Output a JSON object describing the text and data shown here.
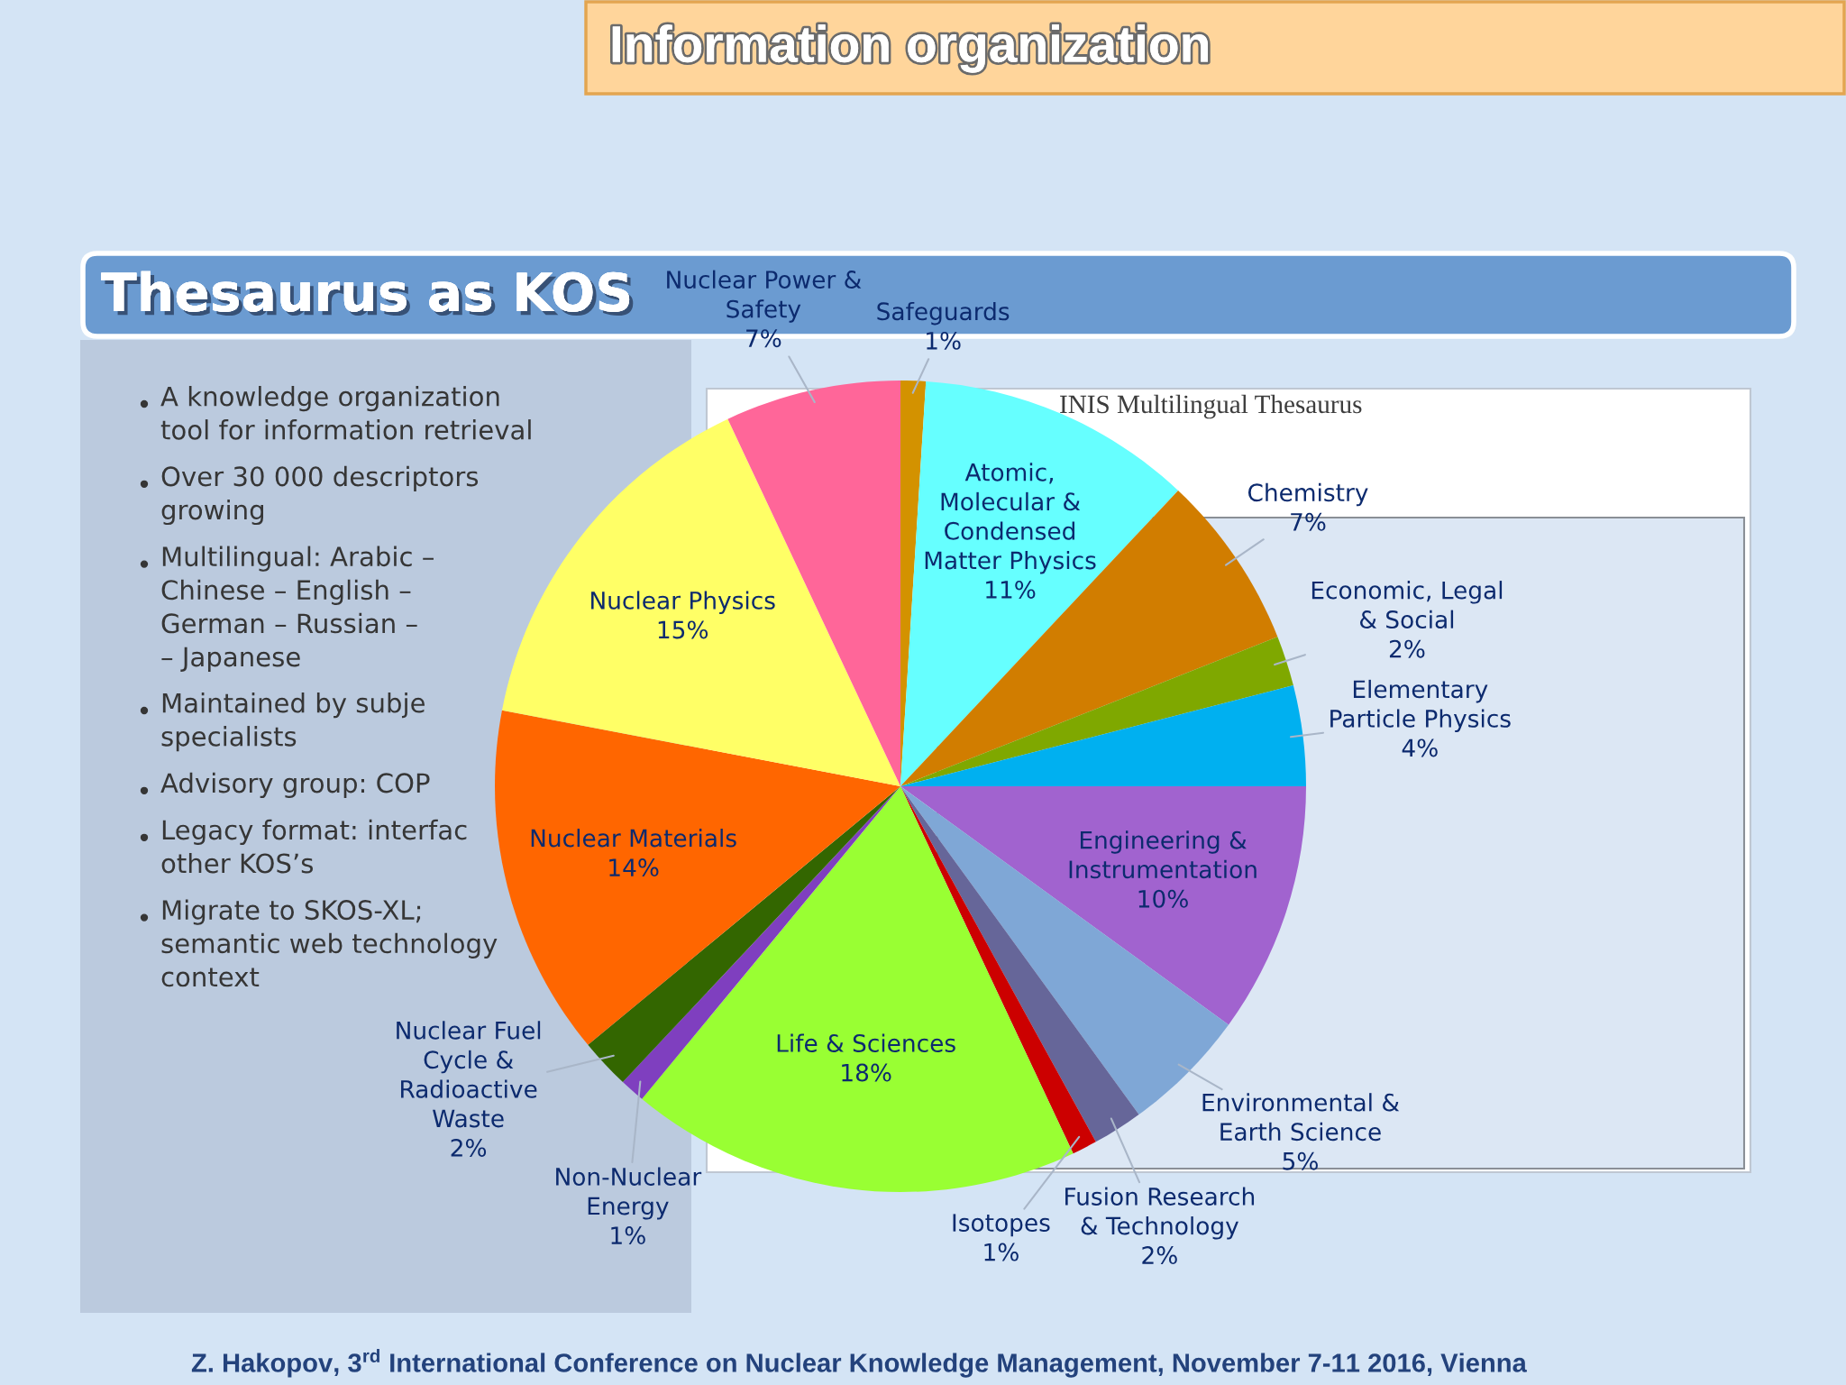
{
  "chart_data": {
    "type": "pie",
    "title": "Information organization",
    "subtitle": "Thesaurus as KOS",
    "categories": [
      "Safeguards",
      "Atomic,\nMolecular &\nCondensed\nMatter Physics",
      "Chemistry",
      "Economic, Legal\n& Social",
      "Elementary\nParticle Physics",
      "Engineering &\nInstrumentation",
      "Environmental &\nEarth Science",
      "Fusion Research\n& Technology",
      "Isotopes",
      "Life & Sciences",
      "Non-Nuclear\nEnergy",
      "Nuclear Fuel\nCycle &\nRadioactive\nWaste",
      "Nuclear Materials",
      "Nuclear Physics",
      "Nuclear Power &\nSafety"
    ],
    "values": [
      1,
      11,
      7,
      2,
      4,
      10,
      5,
      2,
      1,
      18,
      1,
      2,
      14,
      15,
      7
    ],
    "value_labels": [
      "1%",
      "11%",
      "7%",
      "2%",
      "4%",
      "10%",
      "5%",
      "2%",
      "1%",
      "18%",
      "1%",
      "2%",
      "14%",
      "15%",
      "7%"
    ],
    "colors": [
      "#d39200",
      "#66ffff",
      "#d17d00",
      "#7fa800",
      "#00b0f0",
      "#a163cf",
      "#7fa7d6",
      "#666699",
      "#cc0000",
      "#99ff33",
      "#7f3fbf",
      "#336600",
      "#ff6600",
      "#ffff66",
      "#ff6699"
    ],
    "annotations": [
      "A knowledge organization\ntool for information retrieval",
      "Over 30 000 descriptors\ngrowing",
      "Multilingual: Arabic –\nChinese – English –\nGerman – Russian –\n– Japanese",
      "Maintained by subje\nspecialists",
      "Advisory group: COP",
      "Legacy format: interfac\nother KOS’s",
      "Migrate to SKOS-XL;\nsemantic web technology\ncontext",
      "INIS Multilingual Thesaurus",
      "Z. Hakopov, 3$^{rd}$ International Conference on Nuclear Knowledge Management, November 7-11 2016, Vienna"
    ]
  }
}
